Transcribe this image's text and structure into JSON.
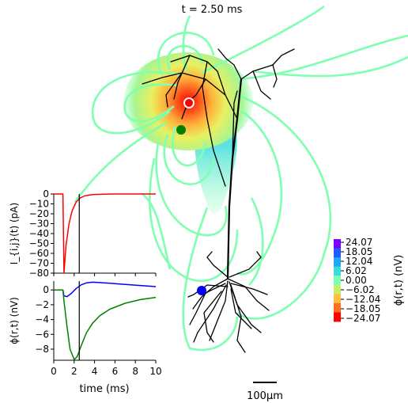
{
  "title": "t = 2.50 ms",
  "scale_bar_label": "100μm",
  "colorbar": {
    "label": "ϕ(r,t) (nV)",
    "ticks": [
      "24.07",
      "18.05",
      "12.04",
      "6.02",
      "0.00",
      "−6.02",
      "−12.04",
      "−18.05",
      "−24.07"
    ],
    "colors": [
      "#7a00ff",
      "#1f5cff",
      "#1ea7f5",
      "#3ddcdc",
      "#7fffb0",
      "#c4f067",
      "#ffbf3b",
      "#ff6d1f",
      "#ff0000"
    ]
  },
  "markers": [
    {
      "name": "current-source",
      "color": "#ff0000"
    },
    {
      "name": "electrode-1",
      "color": "#008000"
    },
    {
      "name": "electrode-2",
      "color": "#0000ff"
    }
  ],
  "contour_color": "#7fffb0",
  "morphology_color": "#000000",
  "chart_data": [
    {
      "type": "line",
      "ylabel": "I_{i,j}(t) (pA)",
      "xlim": [
        0,
        10
      ],
      "ylim": [
        -80,
        0
      ],
      "yticks": [
        "0",
        "−10",
        "−20",
        "−30",
        "−40",
        "−50",
        "−60",
        "−70",
        "−80"
      ],
      "ytick_values": [
        0,
        -10,
        -20,
        -30,
        -40,
        -50,
        -60,
        -70,
        -80
      ],
      "time_marker": 2.5,
      "series": [
        {
          "color": "#ff0000",
          "x": [
            0,
            0.9,
            1.0,
            1.2,
            1.5,
            1.8,
            2.2,
            2.6,
            3.0,
            3.5,
            4.0,
            5.0,
            6.0,
            8.0,
            10.0
          ],
          "y": [
            0,
            0,
            -80,
            -52,
            -30,
            -17,
            -8,
            -4,
            -2,
            -1,
            -0.5,
            -0.2,
            0,
            0,
            0
          ]
        }
      ]
    },
    {
      "type": "line",
      "xlabel": "time (ms)",
      "ylabel": "ϕ(r,t) (nV)",
      "xlim": [
        0,
        10
      ],
      "ylim": [
        -9.5,
        1.2
      ],
      "xticks": [
        "0",
        "2",
        "4",
        "6",
        "8",
        "10"
      ],
      "xtick_values": [
        0,
        2,
        4,
        6,
        8,
        10
      ],
      "yticks": [
        "0",
        "−2",
        "−4",
        "−6",
        "−8"
      ],
      "ytick_values": [
        0,
        -2,
        -4,
        -6,
        -8
      ],
      "time_marker": 2.5,
      "series": [
        {
          "color": "#0000ff",
          "x": [
            0,
            0.9,
            1.0,
            1.3,
            1.7,
            2.2,
            2.7,
            3.2,
            3.8,
            4.5,
            5.5,
            7.0,
            8.5,
            10.0
          ],
          "y": [
            0,
            0,
            -0.8,
            -0.9,
            -0.5,
            0.2,
            0.7,
            0.95,
            1.05,
            1.0,
            0.9,
            0.75,
            0.6,
            0.45
          ]
        },
        {
          "color": "#008000",
          "x": [
            0,
            0.9,
            1.0,
            1.3,
            1.6,
            2.0,
            2.3,
            2.7,
            3.2,
            3.8,
            4.5,
            5.5,
            7.0,
            8.5,
            10.0
          ],
          "y": [
            0,
            0,
            -1.5,
            -5.0,
            -8.0,
            -9.4,
            -9.0,
            -7.5,
            -5.8,
            -4.5,
            -3.5,
            -2.6,
            -1.8,
            -1.3,
            -1.0
          ]
        }
      ]
    }
  ]
}
